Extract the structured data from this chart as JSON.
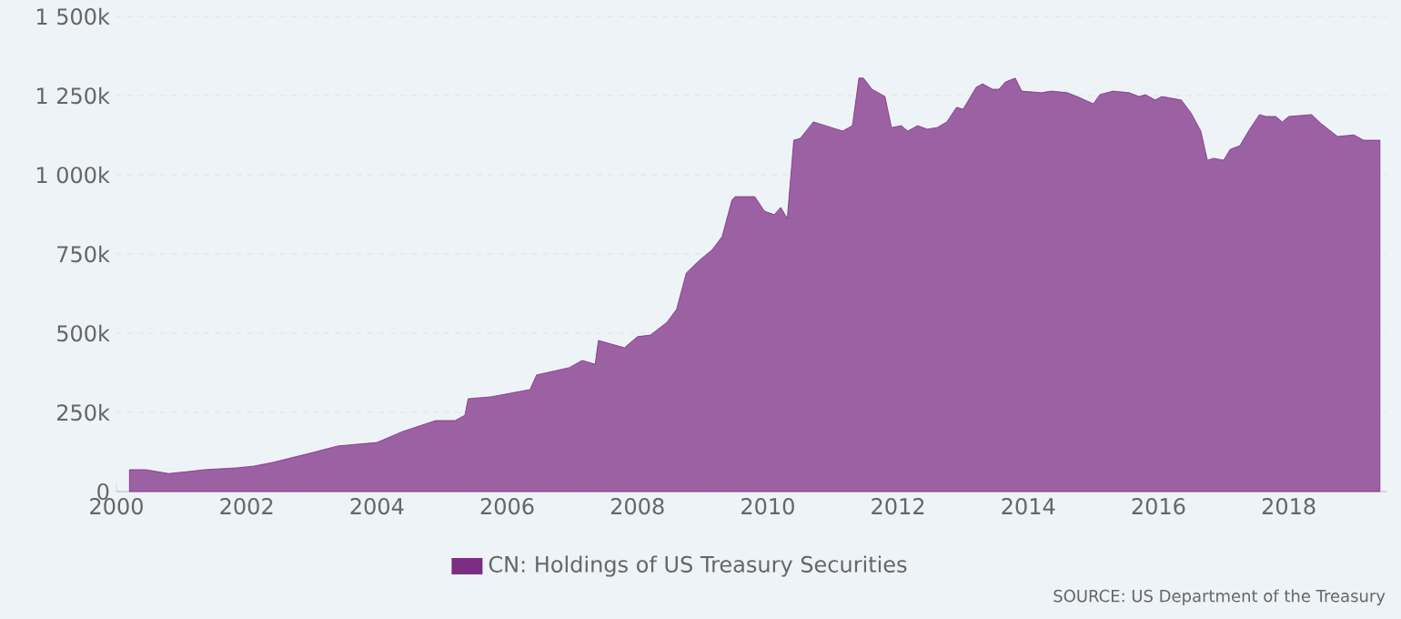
{
  "chart_data": {
    "type": "area",
    "x": [
      2000.2,
      2000.45,
      2000.8,
      2001.1,
      2001.35,
      2001.85,
      2002.1,
      2002.4,
      2002.95,
      2003.4,
      2004.0,
      2004.4,
      2004.9,
      2005.2,
      2005.35,
      2005.4,
      2005.75,
      2006.35,
      2006.45,
      2006.95,
      2007.15,
      2007.35,
      2007.4,
      2007.8,
      2008.0,
      2008.2,
      2008.45,
      2008.6,
      2008.75,
      2008.95,
      2009.15,
      2009.3,
      2009.45,
      2009.5,
      2009.8,
      2009.95,
      2010.1,
      2010.2,
      2010.3,
      2010.4,
      2010.5,
      2010.7,
      2011.15,
      2011.3,
      2011.4,
      2011.47,
      2011.6,
      2011.8,
      2011.9,
      2012.05,
      2012.15,
      2012.3,
      2012.45,
      2012.6,
      2012.75,
      2012.9,
      2013.0,
      2013.2,
      2013.3,
      2013.45,
      2013.55,
      2013.65,
      2013.8,
      2013.9,
      2014.2,
      2014.35,
      2014.6,
      2014.75,
      2015.0,
      2015.1,
      2015.3,
      2015.55,
      2015.7,
      2015.8,
      2015.95,
      2016.05,
      2016.35,
      2016.5,
      2016.65,
      2016.75,
      2016.85,
      2017.0,
      2017.1,
      2017.25,
      2017.4,
      2017.55,
      2017.65,
      2017.8,
      2017.9,
      2018.0,
      2018.35,
      2018.5,
      2018.75,
      2019.0,
      2019.15,
      2019.4
    ],
    "series": [
      {
        "name": "CN: Holdings of US Treasury Securities",
        "color": "#7b2d84",
        "values": [
          69,
          69,
          57,
          63,
          69,
          75,
          80,
          92,
          120,
          144,
          155,
          190,
          224,
          224,
          241,
          293,
          299,
          322,
          368,
          391,
          414,
          402,
          477,
          454,
          489,
          494,
          534,
          575,
          690,
          730,
          764,
          805,
          920,
          931,
          931,
          885,
          874,
          897,
          862,
          1109,
          1115,
          1167,
          1138,
          1155,
          1305,
          1305,
          1270,
          1247,
          1149,
          1155,
          1138,
          1155,
          1144,
          1149,
          1167,
          1213,
          1207,
          1276,
          1287,
          1270,
          1270,
          1293,
          1305,
          1264,
          1259,
          1264,
          1259,
          1247,
          1224,
          1253,
          1264,
          1259,
          1247,
          1253,
          1236,
          1247,
          1236,
          1195,
          1138,
          1046,
          1052,
          1046,
          1080,
          1092,
          1144,
          1190,
          1184,
          1184,
          1167,
          1184,
          1190,
          1161,
          1121,
          1126,
          1109,
          1109
        ]
      }
    ],
    "xlim": [
      2000,
      2019.5
    ],
    "xticks": [
      2000,
      2002,
      2004,
      2006,
      2008,
      2010,
      2012,
      2014,
      2016,
      2018
    ],
    "ylim": [
      0,
      1500
    ],
    "yticks": [
      0,
      {
        "value": 250,
        "label": "250k"
      },
      {
        "value": 500,
        "label": "500k"
      },
      {
        "value": 750,
        "label": "750k"
      },
      {
        "value": 1000,
        "label": "1 000k"
      },
      {
        "value": 1250,
        "label": "1 250k"
      },
      {
        "value": 1500,
        "label": "1 500k"
      }
    ],
    "grid": "y",
    "legend": "bottom",
    "marker": "none",
    "annotations": [
      "SOURCE: US Department of the Treasury"
    ]
  }
}
